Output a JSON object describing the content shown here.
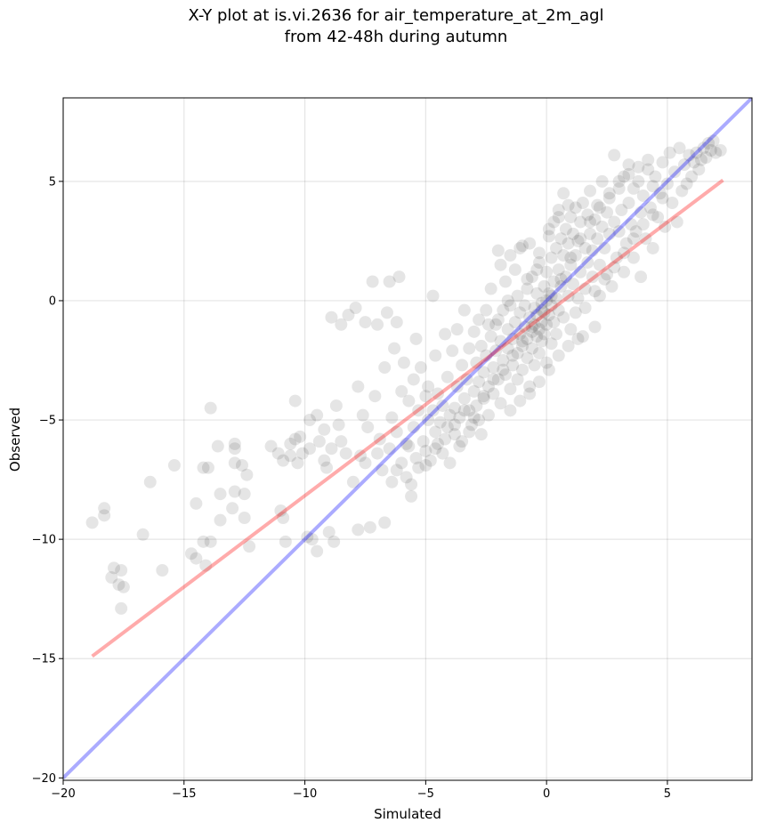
{
  "chart_data": {
    "type": "scatter",
    "title_line1": "X-Y plot at is.vi.2636 for air_temperature_at_2m_agl",
    "title_line2": "from 42-48h during autumn",
    "xlabel": "Simulated",
    "ylabel": "Observed",
    "xlim": [
      -20,
      8.5
    ],
    "ylim": [
      -20.1,
      8.5
    ],
    "xticks": [
      -20,
      -15,
      -10,
      -5,
      0,
      5
    ],
    "yticks": [
      -20,
      -15,
      -10,
      -5,
      0,
      5
    ],
    "xtick_labels": [
      "−20",
      "−15",
      "−10",
      "−5",
      "0",
      "5"
    ],
    "ytick_labels": [
      "−20",
      "−15",
      "−10",
      "−5",
      "0",
      "5"
    ],
    "grid": true,
    "colors": {
      "points": "#000000",
      "identity_line": "#0000ff",
      "fit_line": "#ff0000"
    },
    "identity_line": {
      "x": [
        -20,
        8.5
      ],
      "y": [
        -20,
        8.5
      ]
    },
    "fit_line": {
      "x": [
        -18.8,
        7.3
      ],
      "y": [
        -14.9,
        5.05
      ]
    },
    "points": [
      [
        -18.8,
        -9.3
      ],
      [
        -18.3,
        -8.7
      ],
      [
        -18.3,
        -9.0
      ],
      [
        -17.9,
        -11.2
      ],
      [
        -18.0,
        -11.6
      ],
      [
        -17.7,
        -11.9
      ],
      [
        -17.5,
        -12.0
      ],
      [
        -17.6,
        -11.3
      ],
      [
        -17.6,
        -12.9
      ],
      [
        -16.7,
        -9.8
      ],
      [
        -16.4,
        -7.6
      ],
      [
        -15.9,
        -11.3
      ],
      [
        -15.4,
        -6.9
      ],
      [
        -14.7,
        -10.6
      ],
      [
        -14.5,
        -8.5
      ],
      [
        -14.5,
        -10.8
      ],
      [
        -14.2,
        -7.0
      ],
      [
        -14.2,
        -10.1
      ],
      [
        -14.0,
        -7.0
      ],
      [
        -13.9,
        -4.5
      ],
      [
        -13.9,
        -10.1
      ],
      [
        -14.1,
        -11.1
      ],
      [
        -13.6,
        -6.1
      ],
      [
        -13.5,
        -8.1
      ],
      [
        -13.5,
        -9.2
      ],
      [
        -13.0,
        -8.7
      ],
      [
        -12.9,
        -6.0
      ],
      [
        -12.9,
        -6.2
      ],
      [
        -12.9,
        -6.8
      ],
      [
        -12.9,
        -8.0
      ],
      [
        -12.6,
        -6.9
      ],
      [
        -12.5,
        -8.1
      ],
      [
        -12.5,
        -9.1
      ],
      [
        -12.4,
        -7.3
      ],
      [
        -12.3,
        -10.3
      ],
      [
        -11.4,
        -6.1
      ],
      [
        -11.1,
        -6.4
      ],
      [
        -11.0,
        -8.8
      ],
      [
        -10.9,
        -6.7
      ],
      [
        -10.9,
        -9.1
      ],
      [
        -10.8,
        -10.1
      ],
      [
        -10.6,
        -6.0
      ],
      [
        -10.6,
        -6.5
      ],
      [
        -10.4,
        -4.2
      ],
      [
        -10.4,
        -5.8
      ],
      [
        -10.3,
        -6.8
      ],
      [
        -10.2,
        -5.7
      ],
      [
        -10.1,
        -6.4
      ],
      [
        -9.9,
        -9.9
      ],
      [
        -9.8,
        -5.0
      ],
      [
        -9.8,
        -6.2
      ],
      [
        -9.7,
        -10.0
      ],
      [
        -9.5,
        -10.5
      ],
      [
        -9.5,
        -4.8
      ],
      [
        -9.4,
        -5.9
      ],
      [
        -9.2,
        -5.4
      ],
      [
        -9.2,
        -6.7
      ],
      [
        -9.1,
        -7.0
      ],
      [
        -9.0,
        -9.7
      ],
      [
        -8.9,
        -0.7
      ],
      [
        -8.9,
        -6.2
      ],
      [
        -8.8,
        -10.1
      ],
      [
        -8.7,
        -4.4
      ],
      [
        -8.6,
        -5.2
      ],
      [
        -8.5,
        -5.9
      ],
      [
        -8.5,
        -1.0
      ],
      [
        -8.3,
        -6.4
      ],
      [
        -8.2,
        -0.6
      ],
      [
        -8.0,
        -7.6
      ],
      [
        -7.9,
        -0.3
      ],
      [
        -7.8,
        -3.6
      ],
      [
        -7.8,
        -9.6
      ],
      [
        -7.7,
        -6.5
      ],
      [
        -7.6,
        -4.8
      ],
      [
        -7.5,
        -0.9
      ],
      [
        -7.5,
        -6.8
      ],
      [
        -7.4,
        -5.3
      ],
      [
        -7.3,
        -9.5
      ],
      [
        -7.2,
        0.8
      ],
      [
        -7.1,
        -4.0
      ],
      [
        -7.0,
        -6.4
      ],
      [
        -7.0,
        -1.0
      ],
      [
        -6.9,
        -5.8
      ],
      [
        -6.8,
        -7.1
      ],
      [
        -6.7,
        -9.3
      ],
      [
        -6.7,
        -2.8
      ],
      [
        -6.6,
        -0.5
      ],
      [
        -6.5,
        0.8
      ],
      [
        -6.5,
        -6.2
      ],
      [
        -6.4,
        -4.9
      ],
      [
        -6.4,
        -7.6
      ],
      [
        -6.3,
        -2.0
      ],
      [
        -6.2,
        -0.9
      ],
      [
        -6.2,
        -5.5
      ],
      [
        -6.1,
        1.0
      ],
      [
        -6.0,
        -3.8
      ],
      [
        -6.0,
        -6.8
      ],
      [
        -5.9,
        -2.6
      ],
      [
        -5.8,
        -7.4
      ],
      [
        -5.7,
        -4.2
      ],
      [
        -5.7,
        -6.1
      ],
      [
        -5.6,
        -8.2
      ],
      [
        -5.5,
        -3.3
      ],
      [
        -5.5,
        -5.3
      ],
      [
        -5.4,
        -1.6
      ],
      [
        -5.4,
        -6.6
      ],
      [
        -5.3,
        -4.6
      ],
      [
        -5.3,
        -7.0
      ],
      [
        -5.2,
        -2.8
      ],
      [
        -5.1,
        -5.9
      ],
      [
        -5.0,
        -4.0
      ],
      [
        -5.0,
        -6.3
      ],
      [
        -4.9,
        -5.0
      ],
      [
        -4.9,
        -3.6
      ],
      [
        -4.8,
        -6.7
      ],
      [
        -4.7,
        0.2
      ],
      [
        -4.7,
        -4.6
      ],
      [
        -4.6,
        -5.5
      ],
      [
        -4.6,
        -2.3
      ],
      [
        -4.5,
        -6.0
      ],
      [
        -4.5,
        -3.9
      ],
      [
        -4.4,
        -5.1
      ],
      [
        -4.3,
        -4.4
      ],
      [
        -4.3,
        -6.4
      ],
      [
        -4.2,
        -1.4
      ],
      [
        -4.1,
        -5.3
      ],
      [
        -4.1,
        -3.2
      ],
      [
        -4.0,
        -4.8
      ],
      [
        -4.0,
        -6.8
      ],
      [
        -3.9,
        -2.1
      ],
      [
        -3.8,
        -4.5
      ],
      [
        -3.8,
        -5.6
      ],
      [
        -3.7,
        -3.6
      ],
      [
        -3.7,
        -1.2
      ],
      [
        -3.6,
        -4.9
      ],
      [
        -3.5,
        -2.7
      ],
      [
        -3.5,
        -5.9
      ],
      [
        -3.4,
        -4.1
      ],
      [
        -3.4,
        -0.4
      ],
      [
        -3.3,
        -3.3
      ],
      [
        -3.2,
        -4.6
      ],
      [
        -3.2,
        -2.0
      ],
      [
        -3.1,
        -5.2
      ],
      [
        -3.0,
        -3.8
      ],
      [
        -3.0,
        -1.3
      ],
      [
        -2.9,
        -4.4
      ],
      [
        -2.9,
        -2.6
      ],
      [
        -2.8,
        -0.8
      ],
      [
        -2.8,
        -3.4
      ],
      [
        -2.7,
        -5.6
      ],
      [
        -2.7,
        -1.9
      ],
      [
        -2.6,
        -4.0
      ],
      [
        -2.6,
        -3.0
      ],
      [
        -2.5,
        -0.4
      ],
      [
        -2.5,
        -2.3
      ],
      [
        -2.4,
        -3.6
      ],
      [
        -2.4,
        -4.8
      ],
      [
        -2.3,
        -1.5
      ],
      [
        -2.3,
        0.5
      ],
      [
        -2.2,
        -2.8
      ],
      [
        -2.2,
        -3.9
      ],
      [
        -2.1,
        -1.0
      ],
      [
        -2.1,
        -2.1
      ],
      [
        -2.0,
        -3.3
      ],
      [
        -2.0,
        2.1
      ],
      [
        -1.9,
        -1.7
      ],
      [
        -1.9,
        -4.3
      ],
      [
        -1.8,
        -0.4
      ],
      [
        -1.8,
        -2.5
      ],
      [
        -1.7,
        -3.1
      ],
      [
        -1.7,
        0.8
      ],
      [
        -1.6,
        -1.2
      ],
      [
        -1.6,
        -2.0
      ],
      [
        -1.5,
        -3.7
      ],
      [
        -1.5,
        -0.2
      ],
      [
        -1.4,
        -1.6
      ],
      [
        -1.4,
        -2.7
      ],
      [
        -1.3,
        1.3
      ],
      [
        -1.3,
        -0.9
      ],
      [
        -1.2,
        -2.2
      ],
      [
        -1.2,
        -3.3
      ],
      [
        -1.1,
        -0.5
      ],
      [
        -1.1,
        -1.4
      ],
      [
        -1.0,
        2.3
      ],
      [
        -1.0,
        -1.9
      ],
      [
        -1.0,
        -2.9
      ],
      [
        -0.9,
        -0.2
      ],
      [
        -0.9,
        -1.1
      ],
      [
        -0.8,
        0.5
      ],
      [
        -0.8,
        -1.6
      ],
      [
        -0.8,
        -2.4
      ],
      [
        -0.7,
        -0.7
      ],
      [
        -0.7,
        -3.6
      ],
      [
        -0.6,
        1.0
      ],
      [
        -0.6,
        -1.3
      ],
      [
        -0.6,
        -2.0
      ],
      [
        -0.5,
        -0.3
      ],
      [
        -0.5,
        -1.0
      ],
      [
        -0.5,
        -2.7
      ],
      [
        -0.4,
        0.3
      ],
      [
        -0.4,
        -1.5
      ],
      [
        -0.4,
        -0.6
      ],
      [
        -0.3,
        1.6
      ],
      [
        -0.3,
        -1.2
      ],
      [
        -0.3,
        -2.2
      ],
      [
        -0.2,
        -0.1
      ],
      [
        -0.2,
        -0.9
      ],
      [
        -0.2,
        -1.7
      ],
      [
        -0.1,
        0.6
      ],
      [
        -0.1,
        -0.5
      ],
      [
        -0.1,
        -1.4
      ],
      [
        0.0,
        1.2
      ],
      [
        0.0,
        0.0
      ],
      [
        0.0,
        -1.0
      ],
      [
        0.0,
        -2.6
      ],
      [
        0.1,
        2.7
      ],
      [
        0.1,
        0.3
      ],
      [
        0.1,
        -0.6
      ],
      [
        0.2,
        1.8
      ],
      [
        0.2,
        -0.2
      ],
      [
        0.2,
        -1.8
      ],
      [
        0.3,
        3.3
      ],
      [
        0.3,
        0.8
      ],
      [
        0.3,
        -0.9
      ],
      [
        0.4,
        2.2
      ],
      [
        0.4,
        0.1
      ],
      [
        0.4,
        -1.4
      ],
      [
        0.5,
        3.8
      ],
      [
        0.5,
        1.3
      ],
      [
        0.5,
        -0.4
      ],
      [
        0.6,
        2.6
      ],
      [
        0.6,
        0.6
      ],
      [
        0.7,
        4.5
      ],
      [
        0.7,
        1.9
      ],
      [
        0.7,
        -0.7
      ],
      [
        0.8,
        3.0
      ],
      [
        0.8,
        1.0
      ],
      [
        0.9,
        2.4
      ],
      [
        0.9,
        0.2
      ],
      [
        1.0,
        3.5
      ],
      [
        1.0,
        1.5
      ],
      [
        1.0,
        -1.2
      ],
      [
        1.1,
        2.8
      ],
      [
        1.1,
        0.7
      ],
      [
        1.2,
        3.9
      ],
      [
        1.2,
        1.9
      ],
      [
        1.3,
        0.1
      ],
      [
        1.3,
        2.5
      ],
      [
        1.4,
        3.3
      ],
      [
        1.4,
        1.2
      ],
      [
        1.5,
        4.1
      ],
      [
        1.5,
        -1.5
      ],
      [
        1.6,
        2.2
      ],
      [
        1.6,
        0.5
      ],
      [
        1.7,
        3.6
      ],
      [
        1.7,
        1.6
      ],
      [
        1.8,
        2.8
      ],
      [
        1.8,
        4.6
      ],
      [
        1.9,
        1.0
      ],
      [
        1.9,
        2.1
      ],
      [
        2.0,
        3.4
      ],
      [
        2.0,
        -1.1
      ],
      [
        2.1,
        2.6
      ],
      [
        2.1,
        4.0
      ],
      [
        2.2,
        1.5
      ],
      [
        2.2,
        0.2
      ],
      [
        2.3,
        3.1
      ],
      [
        2.3,
        5.0
      ],
      [
        2.4,
        2.2
      ],
      [
        2.5,
        3.7
      ],
      [
        2.5,
        1.1
      ],
      [
        2.6,
        4.3
      ],
      [
        2.6,
        2.8
      ],
      [
        2.7,
        0.6
      ],
      [
        2.8,
        3.3
      ],
      [
        2.8,
        6.1
      ],
      [
        2.9,
        1.8
      ],
      [
        3.0,
        4.7
      ],
      [
        3.0,
        2.9
      ],
      [
        3.1,
        3.8
      ],
      [
        3.2,
        1.2
      ],
      [
        3.2,
        5.2
      ],
      [
        3.3,
        2.4
      ],
      [
        3.4,
        4.1
      ],
      [
        3.4,
        5.7
      ],
      [
        3.5,
        3.2
      ],
      [
        3.6,
        1.8
      ],
      [
        3.6,
        4.7
      ],
      [
        3.7,
        2.9
      ],
      [
        3.8,
        5.0
      ],
      [
        3.9,
        3.7
      ],
      [
        3.9,
        1.0
      ],
      [
        4.0,
        4.4
      ],
      [
        4.1,
        2.6
      ],
      [
        4.2,
        5.5
      ],
      [
        4.3,
        3.9
      ],
      [
        4.4,
        4.8
      ],
      [
        4.4,
        2.2
      ],
      [
        4.5,
        5.2
      ],
      [
        4.6,
        3.5
      ],
      [
        4.7,
        4.5
      ],
      [
        4.8,
        5.8
      ],
      [
        4.9,
        3.1
      ],
      [
        5.0,
        4.9
      ],
      [
        5.1,
        6.2
      ],
      [
        5.2,
        4.1
      ],
      [
        5.3,
        5.4
      ],
      [
        5.4,
        3.3
      ],
      [
        5.5,
        6.4
      ],
      [
        5.6,
        4.6
      ],
      [
        5.7,
        5.7
      ],
      [
        5.8,
        4.9
      ],
      [
        5.9,
        6.1
      ],
      [
        6.0,
        5.2
      ],
      [
        6.1,
        5.8
      ],
      [
        6.2,
        6.2
      ],
      [
        6.3,
        5.5
      ],
      [
        6.4,
        5.9
      ],
      [
        6.5,
        6.4
      ],
      [
        6.6,
        6.0
      ],
      [
        6.7,
        6.6
      ],
      [
        6.8,
        6.3
      ],
      [
        6.9,
        6.7
      ],
      [
        7.0,
        6.2
      ],
      [
        7.2,
        6.3
      ],
      [
        -3.0,
        -4.9
      ],
      [
        -2.6,
        -4.1
      ],
      [
        -2.2,
        -3.3
      ],
      [
        -1.8,
        -2.9
      ],
      [
        -1.4,
        -2.3
      ],
      [
        -1.0,
        -1.7
      ],
      [
        -0.6,
        -1.1
      ],
      [
        -0.2,
        -0.4
      ],
      [
        0.2,
        0.2
      ],
      [
        0.6,
        0.9
      ],
      [
        1.0,
        1.8
      ],
      [
        1.4,
        2.6
      ],
      [
        1.8,
        3.3
      ],
      [
        2.2,
        3.9
      ],
      [
        2.6,
        4.5
      ],
      [
        3.0,
        5.0
      ],
      [
        3.4,
        5.3
      ],
      [
        3.8,
        5.6
      ],
      [
        4.2,
        5.9
      ],
      [
        -4.2,
        -5.8
      ],
      [
        -3.8,
        -5.2
      ],
      [
        -3.4,
        -4.6
      ],
      [
        -5.0,
        -6.9
      ],
      [
        -4.6,
        -6.2
      ],
      [
        -5.6,
        -7.7
      ],
      [
        -5.8,
        -6.0
      ],
      [
        -6.2,
        -7.1
      ],
      [
        -2.4,
        -1.0
      ],
      [
        -2.0,
        -0.8
      ],
      [
        -1.6,
        0.0
      ],
      [
        -1.2,
        0.2
      ],
      [
        -0.8,
        0.9
      ],
      [
        -0.4,
        1.3
      ],
      [
        1.2,
        -0.5
      ],
      [
        1.6,
        -0.3
      ],
      [
        2.0,
        0.4
      ],
      [
        2.4,
        0.9
      ],
      [
        2.8,
        1.4
      ],
      [
        3.2,
        2.0
      ],
      [
        3.6,
        2.6
      ],
      [
        4.0,
        3.2
      ],
      [
        4.4,
        3.6
      ],
      [
        4.8,
        4.3
      ],
      [
        -1.5,
        -4.6
      ],
      [
        -1.1,
        -4.2
      ],
      [
        -0.7,
        -3.9
      ],
      [
        -0.3,
        -3.4
      ],
      [
        0.1,
        -2.9
      ],
      [
        0.5,
        -2.3
      ],
      [
        0.9,
        -1.9
      ],
      [
        1.3,
        -1.6
      ],
      [
        -3.6,
        -6.1
      ],
      [
        -3.2,
        -5.5
      ],
      [
        -2.8,
        -5.0
      ],
      [
        -1.9,
        1.5
      ],
      [
        -1.5,
        1.9
      ],
      [
        -1.1,
        2.2
      ],
      [
        -0.7,
        2.4
      ],
      [
        -0.3,
        2.0
      ],
      [
        0.1,
        3.0
      ],
      [
        0.5,
        3.5
      ],
      [
        0.9,
        4.0
      ]
    ]
  }
}
